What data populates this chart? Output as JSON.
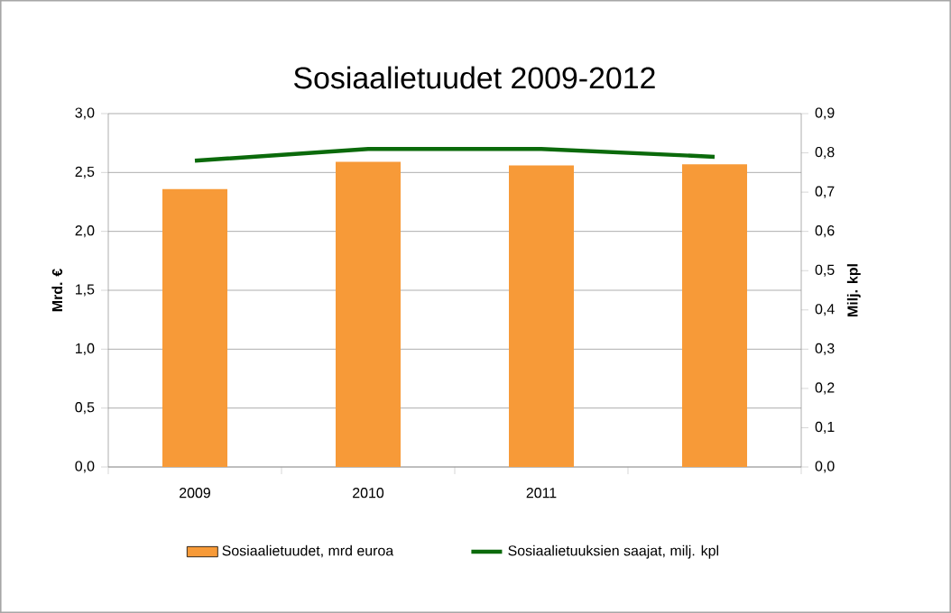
{
  "chart_data": {
    "type": "bar",
    "title": "Sosiaalietuudet 2009-2012",
    "ylabel": "Mrd. €",
    "y2label": "Milj. kpl",
    "categories": [
      "2009",
      "2010",
      "2011",
      null
    ],
    "series": [
      {
        "name": "Sosiaalietuudet, mrd  euroa",
        "color": "#f79a38",
        "values": [
          2.36,
          2.59,
          2.56,
          2.57
        ]
      },
      {
        "name": "Sosiaalietuuksien saajat, milj. kpl",
        "color": "#0b6a0b",
        "type": "line",
        "axis": "y2",
        "marker": "none",
        "values": [
          0.78,
          0.81,
          0.81,
          0.79
        ]
      }
    ],
    "ylim": [
      0,
      3
    ],
    "yticks": [
      {
        "value": 0,
        "label": "0,0"
      },
      {
        "value": 0.5,
        "label": "0,5"
      },
      {
        "value": 1,
        "label": "1,0"
      },
      {
        "value": 1.5,
        "label": "1,5"
      },
      {
        "value": 2,
        "label": "2,0"
      },
      {
        "value": 2.5,
        "label": "2,5"
      },
      {
        "value": 3,
        "label": "3,0"
      }
    ],
    "y2lim": [
      0,
      0.9
    ],
    "y2ticks": [
      {
        "value": 0,
        "label": "0,0"
      },
      {
        "value": 0.1,
        "label": "0,1"
      },
      {
        "value": 0.2,
        "label": "0,2"
      },
      {
        "value": 0.3,
        "label": "0,3"
      },
      {
        "value": 0.4,
        "label": "0,4"
      },
      {
        "value": 0.5,
        "label": "0,5"
      },
      {
        "value": 0.6,
        "label": "0,6"
      },
      {
        "value": 0.7,
        "label": "0,7"
      },
      {
        "value": 0.8,
        "label": "0,8"
      },
      {
        "value": 0.9,
        "label": "0,9"
      }
    ],
    "grid": "y",
    "legend": "bottom"
  }
}
